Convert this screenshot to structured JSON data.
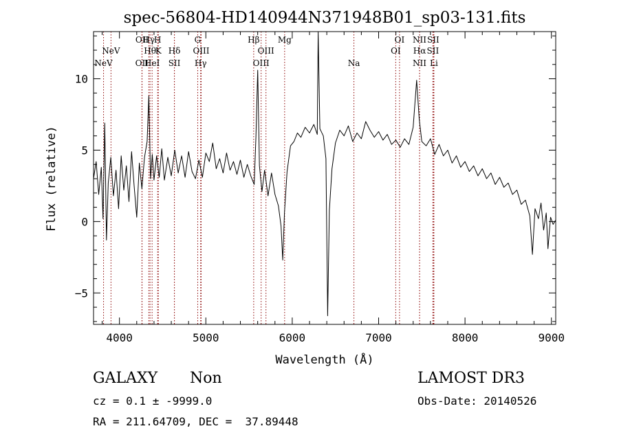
{
  "chart_data": {
    "type": "line",
    "title": "spec-56804-HD140944N371948B01_sp03-131.fits",
    "xlabel": "Wavelength (Å)",
    "ylabel": "Flux (relative)",
    "xlim": [
      3700,
      9050
    ],
    "ylim": [
      -7.2,
      13.3
    ],
    "x_ticks": [
      4000,
      5000,
      6000,
      7000,
      8000,
      9000
    ],
    "y_ticks": [
      -5,
      0,
      5,
      10
    ],
    "line_color": "#000000",
    "marker_color": "#8b0000",
    "series": [
      {
        "values": [
          [
            3700,
            3.0
          ],
          [
            3730,
            4.2
          ],
          [
            3760,
            1.9
          ],
          [
            3790,
            3.8
          ],
          [
            3810,
            0.2
          ],
          [
            3830,
            6.9
          ],
          [
            3850,
            -1.3
          ],
          [
            3870,
            2.7
          ],
          [
            3900,
            4.5
          ],
          [
            3930,
            1.8
          ],
          [
            3960,
            3.6
          ],
          [
            3990,
            0.9
          ],
          [
            4020,
            4.6
          ],
          [
            4050,
            2.2
          ],
          [
            4080,
            3.9
          ],
          [
            4110,
            1.4
          ],
          [
            4140,
            4.9
          ],
          [
            4170,
            2.5
          ],
          [
            4200,
            0.3
          ],
          [
            4230,
            4.1
          ],
          [
            4260,
            2.3
          ],
          [
            4290,
            4.5
          ],
          [
            4320,
            5.6
          ],
          [
            4340,
            8.8
          ],
          [
            4360,
            3.0
          ],
          [
            4380,
            4.7
          ],
          [
            4400,
            2.9
          ],
          [
            4430,
            4.6
          ],
          [
            4460,
            3.1
          ],
          [
            4490,
            5.1
          ],
          [
            4520,
            2.9
          ],
          [
            4560,
            4.5
          ],
          [
            4600,
            3.2
          ],
          [
            4640,
            5.0
          ],
          [
            4680,
            3.4
          ],
          [
            4720,
            4.6
          ],
          [
            4760,
            3.1
          ],
          [
            4800,
            4.9
          ],
          [
            4840,
            3.5
          ],
          [
            4880,
            3.0
          ],
          [
            4920,
            4.3
          ],
          [
            4960,
            3.1
          ],
          [
            5000,
            4.8
          ],
          [
            5040,
            4.2
          ],
          [
            5080,
            5.5
          ],
          [
            5120,
            3.7
          ],
          [
            5160,
            4.4
          ],
          [
            5200,
            3.4
          ],
          [
            5240,
            4.8
          ],
          [
            5280,
            3.6
          ],
          [
            5320,
            4.2
          ],
          [
            5360,
            3.3
          ],
          [
            5400,
            4.3
          ],
          [
            5440,
            3.1
          ],
          [
            5480,
            4.0
          ],
          [
            5520,
            3.2
          ],
          [
            5560,
            2.6
          ],
          [
            5580,
            5.9
          ],
          [
            5600,
            10.6
          ],
          [
            5620,
            3.9
          ],
          [
            5650,
            2.1
          ],
          [
            5680,
            3.6
          ],
          [
            5720,
            1.8
          ],
          [
            5760,
            3.4
          ],
          [
            5800,
            1.9
          ],
          [
            5840,
            1.1
          ],
          [
            5870,
            -0.3
          ],
          [
            5890,
            -2.7
          ],
          [
            5910,
            0.6
          ],
          [
            5940,
            3.5
          ],
          [
            5980,
            5.3
          ],
          [
            6020,
            5.6
          ],
          [
            6060,
            6.2
          ],
          [
            6100,
            5.9
          ],
          [
            6150,
            6.6
          ],
          [
            6200,
            6.2
          ],
          [
            6250,
            6.8
          ],
          [
            6290,
            6.1
          ],
          [
            6300,
            13.3
          ],
          [
            6320,
            6.5
          ],
          [
            6360,
            6.0
          ],
          [
            6390,
            4.4
          ],
          [
            6410,
            -6.6
          ],
          [
            6430,
            0.8
          ],
          [
            6460,
            3.7
          ],
          [
            6500,
            5.5
          ],
          [
            6550,
            6.4
          ],
          [
            6600,
            6.0
          ],
          [
            6650,
            6.7
          ],
          [
            6700,
            5.6
          ],
          [
            6750,
            6.2
          ],
          [
            6800,
            5.8
          ],
          [
            6850,
            7.0
          ],
          [
            6900,
            6.4
          ],
          [
            6950,
            5.9
          ],
          [
            7000,
            6.3
          ],
          [
            7050,
            5.7
          ],
          [
            7100,
            6.1
          ],
          [
            7150,
            5.4
          ],
          [
            7200,
            5.7
          ],
          [
            7250,
            5.2
          ],
          [
            7300,
            5.8
          ],
          [
            7350,
            5.4
          ],
          [
            7400,
            6.6
          ],
          [
            7440,
            9.9
          ],
          [
            7470,
            7.2
          ],
          [
            7500,
            5.6
          ],
          [
            7550,
            5.3
          ],
          [
            7600,
            5.8
          ],
          [
            7650,
            4.7
          ],
          [
            7700,
            5.4
          ],
          [
            7750,
            4.6
          ],
          [
            7800,
            5.0
          ],
          [
            7850,
            4.1
          ],
          [
            7900,
            4.6
          ],
          [
            7950,
            3.8
          ],
          [
            8000,
            4.2
          ],
          [
            8050,
            3.5
          ],
          [
            8100,
            3.9
          ],
          [
            8150,
            3.2
          ],
          [
            8200,
            3.7
          ],
          [
            8250,
            3.0
          ],
          [
            8300,
            3.4
          ],
          [
            8350,
            2.6
          ],
          [
            8400,
            3.1
          ],
          [
            8450,
            2.4
          ],
          [
            8500,
            2.7
          ],
          [
            8550,
            1.9
          ],
          [
            8600,
            2.2
          ],
          [
            8650,
            1.2
          ],
          [
            8700,
            1.5
          ],
          [
            8750,
            0.4
          ],
          [
            8780,
            -2.3
          ],
          [
            8810,
            0.9
          ],
          [
            8850,
            0.2
          ],
          [
            8880,
            1.3
          ],
          [
            8910,
            -0.6
          ],
          [
            8940,
            0.6
          ],
          [
            8960,
            -1.9
          ],
          [
            8990,
            0.3
          ],
          [
            9020,
            -0.2
          ],
          [
            9050,
            0.1
          ]
        ]
      }
    ],
    "lines": [
      {
        "x": 3816,
        "label": "NeV",
        "row": 3
      },
      {
        "x": 3902,
        "label": "NeV",
        "row": 2
      },
      {
        "x": 4262,
        "label": "OII",
        "row": 1
      },
      {
        "x": 4260,
        "label": "OII",
        "row": 3
      },
      {
        "x": 4340,
        "label": "Hγ",
        "row": 1
      },
      {
        "x": 4354,
        "label": "Hθ",
        "row": 2
      },
      {
        "x": 4378,
        "label": "HeI",
        "row": 3
      },
      {
        "x": 4442,
        "label": "H",
        "row": 1
      },
      {
        "x": 4450,
        "label": "K",
        "row": 2
      },
      {
        "x": 4636,
        "label": "Hδ",
        "row": 2
      },
      {
        "x": 4636,
        "label": "SII",
        "row": 3
      },
      {
        "x": 4906,
        "label": "G",
        "row": 1
      },
      {
        "x": 4946,
        "label": "OIII",
        "row": 2
      },
      {
        "x": 4940,
        "label": "Hγ",
        "row": 3
      },
      {
        "x": 5554,
        "label": "Hβ",
        "row": 1
      },
      {
        "x": 5696,
        "label": "OIII",
        "row": 2
      },
      {
        "x": 5640,
        "label": "OIII",
        "row": 3
      },
      {
        "x": 5912,
        "label": "Mg",
        "row": 1
      },
      {
        "x": 6714,
        "label": "Na",
        "row": 3
      },
      {
        "x": 7242,
        "label": "OI",
        "row": 1
      },
      {
        "x": 7198,
        "label": "OI",
        "row": 2
      },
      {
        "x": 7474,
        "label": "NII",
        "row": 1
      },
      {
        "x": 7474,
        "label": "Hα",
        "row": 2
      },
      {
        "x": 7474,
        "label": "NII",
        "row": 3
      },
      {
        "x": 7632,
        "label": "SII",
        "row": 1
      },
      {
        "x": 7628,
        "label": "SII",
        "row": 2
      },
      {
        "x": 7640,
        "label": "Li",
        "row": 3
      }
    ]
  },
  "info": {
    "class_label": "GALAXY",
    "subclass_label": "Non",
    "survey_label": "LAMOST DR3",
    "cz_text": "cz = 0.1 ± -9999.0",
    "obs_date_text": "Obs-Date: 20140526",
    "coords_text": "RA = 211.64709, DEC =  37.89448"
  }
}
